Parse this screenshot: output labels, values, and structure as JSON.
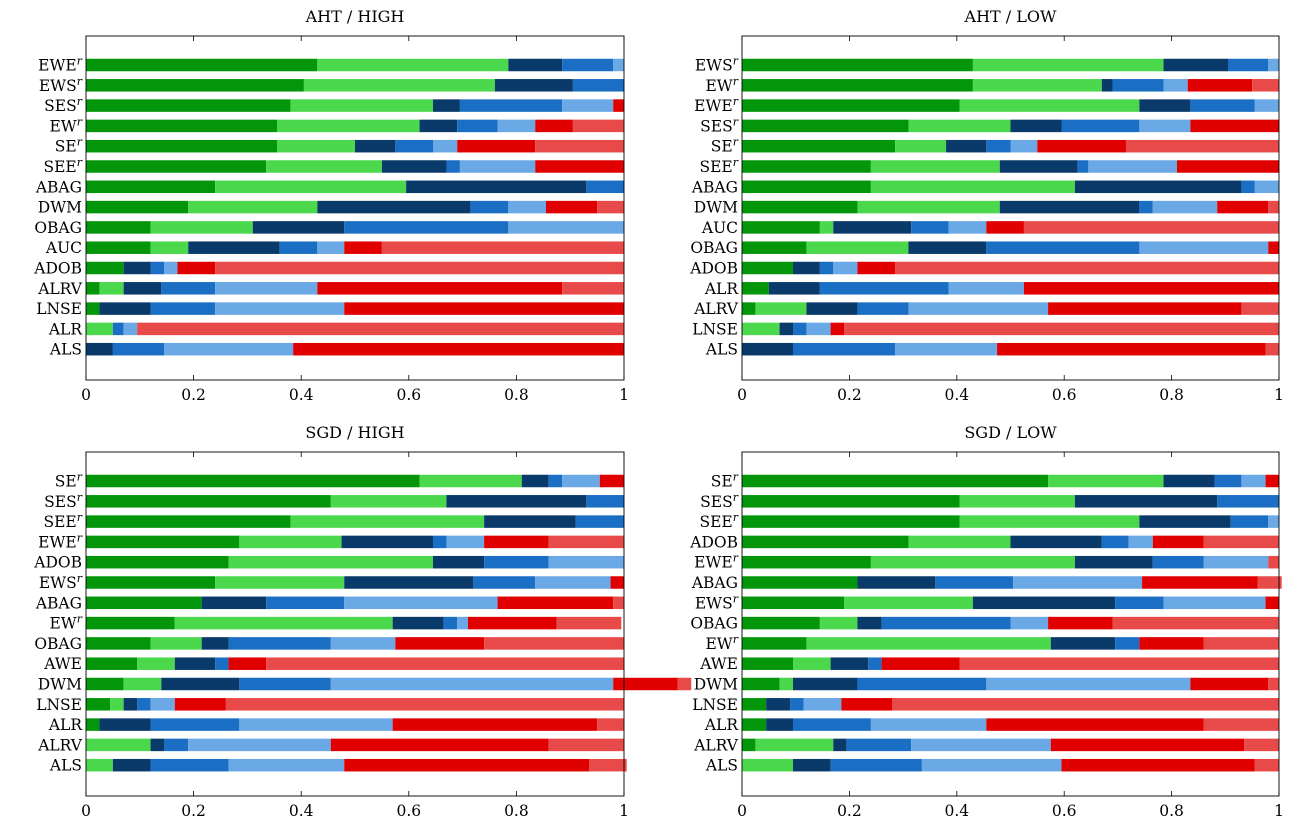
{
  "colors": [
    "#04960a",
    "#4cd84c",
    "#0a3a6a",
    "#1a6fc4",
    "#6aa8e6",
    "#e00000",
    "#e84a4a"
  ],
  "x_ticks": [
    "0",
    "0.2",
    "0.4",
    "0.6",
    "0.8",
    "1"
  ],
  "chart_data": [
    {
      "type": "bar",
      "stacked": true,
      "orientation": "horizontal",
      "title": "AHT / HIGH",
      "xlim": [
        0,
        1
      ],
      "categories": [
        {
          "label": "EWE",
          "sup": "r"
        },
        {
          "label": "EWS",
          "sup": "r"
        },
        {
          "label": "SES",
          "sup": "r"
        },
        {
          "label": "EW",
          "sup": "r"
        },
        {
          "label": "SE",
          "sup": "r"
        },
        {
          "label": "SEE",
          "sup": "r"
        },
        {
          "label": "ABAG",
          "sup": ""
        },
        {
          "label": "DWM",
          "sup": ""
        },
        {
          "label": "OBAG",
          "sup": ""
        },
        {
          "label": "AUC",
          "sup": ""
        },
        {
          "label": "ADOB",
          "sup": ""
        },
        {
          "label": "ALRV",
          "sup": ""
        },
        {
          "label": "LNSE",
          "sup": ""
        },
        {
          "label": "ALR",
          "sup": ""
        },
        {
          "label": "ALS",
          "sup": ""
        }
      ],
      "segments": [
        [
          0.43,
          0.355,
          0.1,
          0.095,
          0.02,
          0,
          0
        ],
        [
          0.405,
          0.355,
          0.145,
          0.095,
          0,
          0,
          0
        ],
        [
          0.38,
          0.265,
          0.05,
          0.19,
          0.095,
          0.02,
          0
        ],
        [
          0.355,
          0.265,
          0.07,
          0.075,
          0.07,
          0.07,
          0.095
        ],
        [
          0.355,
          0.145,
          0.075,
          0.07,
          0.045,
          0.145,
          0.165
        ],
        [
          0.335,
          0.215,
          0.12,
          0.025,
          0.14,
          0.165,
          0
        ],
        [
          0.24,
          0.355,
          0.335,
          0.07,
          0,
          0,
          0
        ],
        [
          0.19,
          0.24,
          0.285,
          0.07,
          0.07,
          0.095,
          0.05
        ],
        [
          0.12,
          0.19,
          0.17,
          0.305,
          0.215,
          0,
          0
        ],
        [
          0.12,
          0.07,
          0.17,
          0.07,
          0.05,
          0.07,
          0.45
        ],
        [
          0.07,
          0,
          0.05,
          0.025,
          0.025,
          0.07,
          0.76
        ],
        [
          0.025,
          0.045,
          0.07,
          0.1,
          0.19,
          0.455,
          0.115
        ],
        [
          0.025,
          0,
          0.095,
          0.12,
          0.24,
          0.52,
          0
        ],
        [
          0,
          0.05,
          0,
          0.02,
          0.025,
          0,
          0.905
        ],
        [
          0,
          0,
          0.05,
          0.095,
          0.24,
          0.615,
          0
        ]
      ]
    },
    {
      "type": "bar",
      "stacked": true,
      "orientation": "horizontal",
      "title": "AHT / LOW",
      "xlim": [
        0,
        1
      ],
      "categories": [
        {
          "label": "EWS",
          "sup": "r"
        },
        {
          "label": "EW",
          "sup": "r"
        },
        {
          "label": "EWE",
          "sup": "r"
        },
        {
          "label": "SES",
          "sup": "r"
        },
        {
          "label": "SE",
          "sup": "r"
        },
        {
          "label": "SEE",
          "sup": "r"
        },
        {
          "label": "ABAG",
          "sup": ""
        },
        {
          "label": "DWM",
          "sup": ""
        },
        {
          "label": "AUC",
          "sup": ""
        },
        {
          "label": "OBAG",
          "sup": ""
        },
        {
          "label": "ADOB",
          "sup": ""
        },
        {
          "label": "ALR",
          "sup": ""
        },
        {
          "label": "ALRV",
          "sup": ""
        },
        {
          "label": "LNSE",
          "sup": ""
        },
        {
          "label": "ALS",
          "sup": ""
        }
      ],
      "segments": [
        [
          0.43,
          0.355,
          0.12,
          0.075,
          0.02,
          0,
          0
        ],
        [
          0.43,
          0.24,
          0.02,
          0.095,
          0.045,
          0.12,
          0.05
        ],
        [
          0.405,
          0.335,
          0.095,
          0.12,
          0.045,
          0,
          0
        ],
        [
          0.31,
          0.19,
          0.095,
          0.145,
          0.095,
          0.165,
          0
        ],
        [
          0.285,
          0.095,
          0.075,
          0.045,
          0.05,
          0.165,
          0.285
        ],
        [
          0.24,
          0.24,
          0.145,
          0.02,
          0.165,
          0.19,
          0
        ],
        [
          0.24,
          0.38,
          0.31,
          0.025,
          0.045,
          0,
          0
        ],
        [
          0.215,
          0.265,
          0.26,
          0.025,
          0.12,
          0.095,
          0.02
        ],
        [
          0.145,
          0.025,
          0.145,
          0.07,
          0.07,
          0.07,
          0.475
        ],
        [
          0.12,
          0.19,
          0.145,
          0.285,
          0.24,
          0.02,
          0
        ],
        [
          0.095,
          0,
          0.05,
          0.025,
          0.045,
          0.07,
          0.715
        ],
        [
          0.05,
          0,
          0.095,
          0.24,
          0.14,
          0.475,
          0
        ],
        [
          0.025,
          0.095,
          0.095,
          0.095,
          0.26,
          0.36,
          0.07
        ],
        [
          0,
          0.07,
          0.025,
          0.025,
          0.045,
          0.025,
          0.81
        ],
        [
          0,
          0,
          0.095,
          0.19,
          0.19,
          0.5,
          0.025
        ]
      ]
    },
    {
      "type": "bar",
      "stacked": true,
      "orientation": "horizontal",
      "title": "SGD / HIGH",
      "xlim": [
        0,
        1
      ],
      "categories": [
        {
          "label": "SE",
          "sup": "r"
        },
        {
          "label": "SES",
          "sup": "r"
        },
        {
          "label": "SEE",
          "sup": "r"
        },
        {
          "label": "EWE",
          "sup": "r"
        },
        {
          "label": "ADOB",
          "sup": ""
        },
        {
          "label": "EWS",
          "sup": "r"
        },
        {
          "label": "ABAG",
          "sup": ""
        },
        {
          "label": "EW",
          "sup": "r"
        },
        {
          "label": "OBAG",
          "sup": ""
        },
        {
          "label": "AWE",
          "sup": ""
        },
        {
          "label": "DWM",
          "sup": ""
        },
        {
          "label": "LNSE",
          "sup": ""
        },
        {
          "label": "ALR",
          "sup": ""
        },
        {
          "label": "ALRV",
          "sup": ""
        },
        {
          "label": "ALS",
          "sup": ""
        }
      ],
      "segments": [
        [
          0.62,
          0.19,
          0.05,
          0.025,
          0.07,
          0.045,
          0
        ],
        [
          0.455,
          0.215,
          0.26,
          0.07,
          0,
          0,
          0
        ],
        [
          0.38,
          0.36,
          0.17,
          0.09,
          0,
          0,
          0
        ],
        [
          0.285,
          0.19,
          0.17,
          0.025,
          0.07,
          0.12,
          0.14
        ],
        [
          0.265,
          0.38,
          0.095,
          0.12,
          0.14,
          0,
          0
        ],
        [
          0.24,
          0.24,
          0.24,
          0.115,
          0.14,
          0.025,
          0
        ],
        [
          0.215,
          0,
          0.12,
          0.145,
          0.285,
          0.215,
          0.02
        ],
        [
          0.165,
          0.405,
          0.095,
          0.025,
          0.02,
          0.165,
          0.12
        ],
        [
          0.12,
          0.095,
          0.05,
          0.19,
          0.12,
          0.165,
          0.26
        ],
        [
          0.095,
          0.07,
          0.075,
          0.025,
          0,
          0.07,
          0.665
        ],
        [
          0.07,
          0.07,
          0.145,
          0.17,
          0.525,
          0.12,
          0.025
        ],
        [
          0.045,
          0.025,
          0.025,
          0.025,
          0.045,
          0.095,
          0.74
        ],
        [
          0.025,
          0,
          0.095,
          0.165,
          0.285,
          0.38,
          0.05
        ],
        [
          0,
          0.12,
          0.025,
          0.045,
          0.265,
          0.405,
          0.14
        ],
        [
          0,
          0.05,
          0.07,
          0.145,
          0.215,
          0.455,
          0.07
        ]
      ]
    },
    {
      "type": "bar",
      "stacked": true,
      "orientation": "horizontal",
      "title": "SGD / LOW",
      "xlim": [
        0,
        1
      ],
      "categories": [
        {
          "label": "SE",
          "sup": "r"
        },
        {
          "label": "SES",
          "sup": "r"
        },
        {
          "label": "SEE",
          "sup": "r"
        },
        {
          "label": "ADOB",
          "sup": ""
        },
        {
          "label": "EWE",
          "sup": "r"
        },
        {
          "label": "ABAG",
          "sup": ""
        },
        {
          "label": "EWS",
          "sup": "r"
        },
        {
          "label": "OBAG",
          "sup": ""
        },
        {
          "label": "EW",
          "sup": "r"
        },
        {
          "label": "AWE",
          "sup": ""
        },
        {
          "label": "DWM",
          "sup": ""
        },
        {
          "label": "LNSE",
          "sup": ""
        },
        {
          "label": "ALR",
          "sup": ""
        },
        {
          "label": "ALRV",
          "sup": ""
        },
        {
          "label": "ALS",
          "sup": ""
        }
      ],
      "segments": [
        [
          0.57,
          0.215,
          0.095,
          0.05,
          0.045,
          0.025,
          0
        ],
        [
          0.405,
          0.215,
          0.265,
          0.115,
          0,
          0,
          0
        ],
        [
          0.405,
          0.335,
          0.17,
          0.07,
          0.02,
          0,
          0
        ],
        [
          0.31,
          0.19,
          0.17,
          0.05,
          0.045,
          0.095,
          0.14
        ],
        [
          0.24,
          0.38,
          0.145,
          0.095,
          0.12,
          0,
          0.02
        ],
        [
          0.215,
          0,
          0.145,
          0.145,
          0.24,
          0.215,
          0.045
        ],
        [
          0.19,
          0.24,
          0.265,
          0.09,
          0.19,
          0.025,
          0
        ],
        [
          0.145,
          0.07,
          0.045,
          0.24,
          0.07,
          0.12,
          0.31
        ],
        [
          0.12,
          0.455,
          0.12,
          0.045,
          0,
          0.12,
          0.14
        ],
        [
          0.095,
          0.07,
          0.07,
          0.025,
          0,
          0.145,
          0.595
        ],
        [
          0.07,
          0.025,
          0.12,
          0.24,
          0.38,
          0.145,
          0.02
        ],
        [
          0.045,
          0,
          0.045,
          0.025,
          0.07,
          0.095,
          0.72
        ],
        [
          0.045,
          0,
          0.05,
          0.145,
          0.215,
          0.405,
          0.14
        ],
        [
          0.025,
          0.145,
          0.025,
          0.12,
          0.26,
          0.36,
          0.065
        ],
        [
          0,
          0.095,
          0.07,
          0.17,
          0.26,
          0.36,
          0.045
        ]
      ]
    }
  ]
}
